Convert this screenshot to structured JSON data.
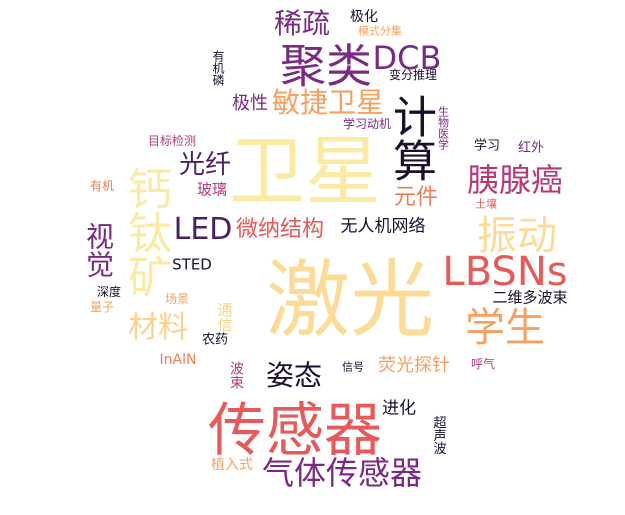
{
  "palette": {
    "cream": "#fbeaa3",
    "peach": "#fbd28b",
    "orange": "#f9a05e",
    "salmon": "#f07c5a",
    "coral": "#e65a5a",
    "magenta": "#b53a78",
    "purple": "#7a2a82",
    "plum": "#4c1f63",
    "ink": "#1a0f2e"
  },
  "words": [
    "激光",
    "卫星",
    "传感器",
    "钙钛矿",
    "聚类",
    "计算",
    "LBSNs",
    "振动",
    "学生",
    "胰腺癌",
    "气体传感器",
    "敏捷卫星",
    "DCB",
    "稀疏",
    "LED",
    "微纳结构",
    "材料",
    "视觉",
    "光纤",
    "元件",
    "姿态",
    "荧光探针",
    "极性",
    "无人机网络",
    "进化",
    "玻璃",
    "STED",
    "二维多波束",
    "极化",
    "模式分集",
    "有机磷",
    "变分推理",
    "学习动机",
    "生物医学",
    "目标检测",
    "学习",
    "红外",
    "有机",
    "土壤",
    "深度",
    "量子",
    "场景",
    "通信",
    "农药",
    "InAlN",
    "信号",
    "呼气",
    "波束",
    "超声波",
    "植入式"
  ]
}
